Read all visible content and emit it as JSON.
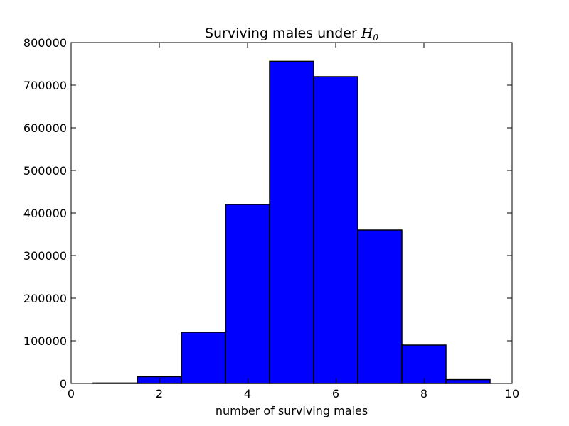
{
  "chart_data": {
    "type": "bar",
    "title": "Surviving males under",
    "title_math": "H",
    "title_math_sub": "0",
    "xlabel": "number of surviving males",
    "ylabel": "",
    "xlim": [
      0,
      10
    ],
    "ylim": [
      0,
      800000
    ],
    "x_ticks": [
      "0",
      "2",
      "4",
      "6",
      "8",
      "10"
    ],
    "y_ticks": [
      "0",
      "100000",
      "200000",
      "300000",
      "400000",
      "500000",
      "600000",
      "700000",
      "800000"
    ],
    "bins": [
      {
        "start": 0.5,
        "end": 1.5,
        "value": 1000
      },
      {
        "start": 1.5,
        "end": 2.5,
        "value": 16000
      },
      {
        "start": 2.5,
        "end": 3.5,
        "value": 120000
      },
      {
        "start": 3.5,
        "end": 4.5,
        "value": 420000
      },
      {
        "start": 4.5,
        "end": 5.5,
        "value": 756000
      },
      {
        "start": 5.5,
        "end": 6.5,
        "value": 720000
      },
      {
        "start": 6.5,
        "end": 7.5,
        "value": 360000
      },
      {
        "start": 7.5,
        "end": 8.5,
        "value": 90000
      },
      {
        "start": 8.5,
        "end": 9.5,
        "value": 9000
      }
    ],
    "grid": false,
    "legend": "none",
    "bar_color": "#0000ff",
    "edge_color": "#000000"
  }
}
